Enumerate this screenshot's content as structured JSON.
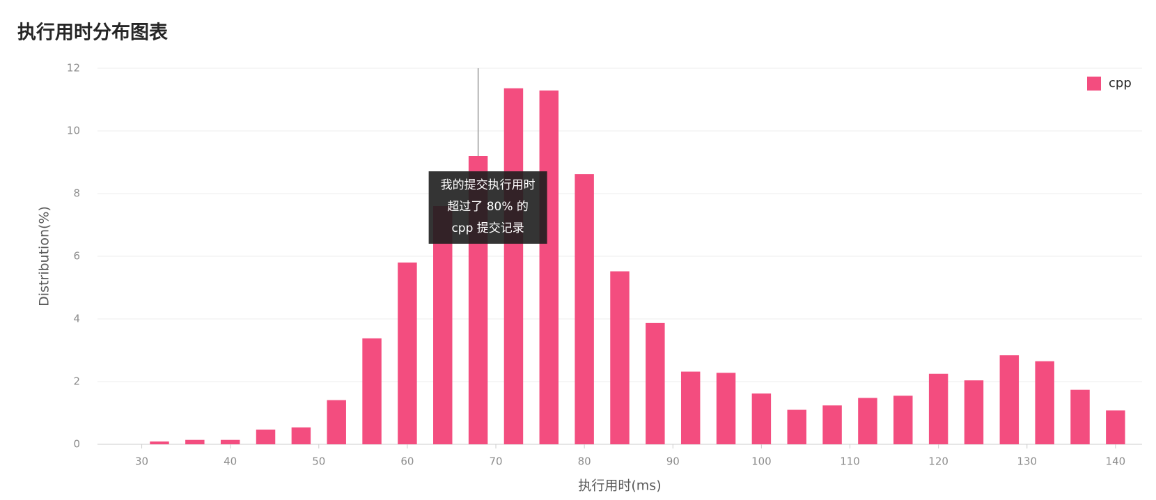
{
  "chart_data": {
    "type": "bar",
    "title": "执行用时分布图表",
    "x_label": "执行用时(ms)",
    "y_label": "Distribution(%)",
    "x": [
      32,
      36,
      40,
      44,
      48,
      52,
      56,
      60,
      64,
      68,
      72,
      76,
      80,
      84,
      88,
      92,
      96,
      100,
      104,
      108,
      112,
      116,
      120,
      124,
      128,
      132,
      136,
      140
    ],
    "series": [
      {
        "name": "cpp",
        "color": "#f34d7f",
        "values": [
          0.09,
          0.14,
          0.14,
          0.47,
          0.54,
          1.41,
          3.38,
          5.8,
          7.6,
          9.2,
          11.36,
          11.29,
          8.62,
          5.52,
          3.87,
          2.32,
          2.28,
          1.62,
          1.1,
          1.24,
          1.48,
          1.55,
          2.25,
          2.04,
          2.84,
          2.65,
          1.74,
          1.08
        ]
      }
    ],
    "xlim": [
      25,
      143
    ],
    "xticks": [
      30,
      40,
      50,
      60,
      70,
      80,
      90,
      100,
      110,
      120,
      130,
      140
    ],
    "ylim": [
      0,
      12
    ],
    "yticks": [
      0,
      2,
      4,
      6,
      8,
      10,
      12
    ],
    "grid": true,
    "legend": "top-right",
    "marker_x": 68,
    "tooltip": {
      "lines": [
        "我的提交执行用时",
        "超过了 80% 的",
        "cpp 提交记录"
      ]
    }
  }
}
